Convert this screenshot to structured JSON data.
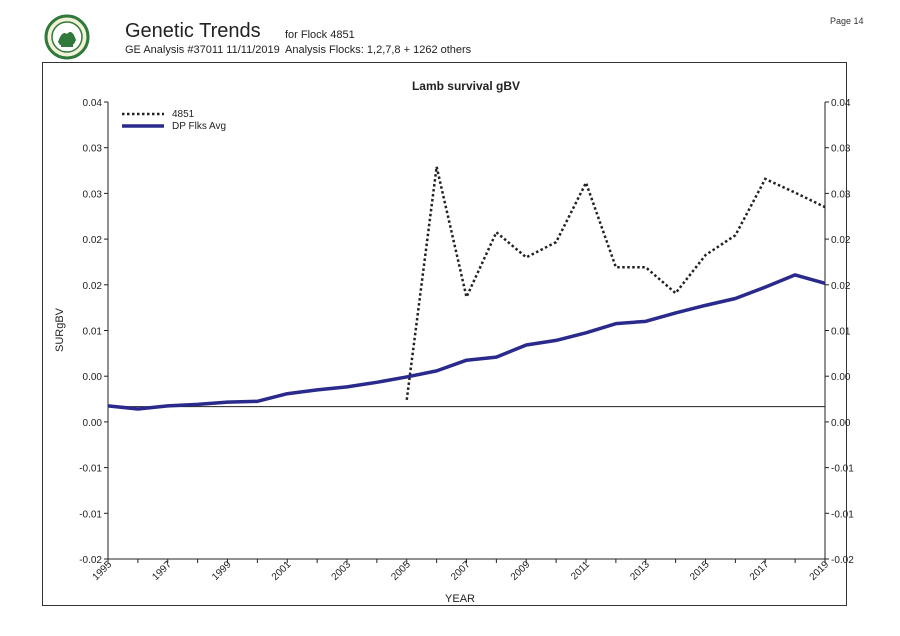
{
  "header": {
    "title": "Genetic Trends",
    "analysis": "GE Analysis #37011 11/11/2019",
    "flock": "for Flock 4851",
    "analysis_flocks": "Analysis Flocks: 1,2,7,8 + 1262 others",
    "page": "Page 14",
    "logo_icon": "sil-logo"
  },
  "chart_data": {
    "type": "line",
    "title": "Lamb survival gBV",
    "xlabel": "YEAR",
    "ylabel": "SURgBV",
    "xlim": [
      1995,
      2019
    ],
    "ylim": [
      -0.02,
      0.04
    ],
    "x_tick_labels": [
      "1995",
      "1997",
      "1999",
      "2001",
      "2003",
      "2005",
      "2007",
      "2009",
      "2011",
      "2013",
      "2015",
      "2017",
      "2019"
    ],
    "y_ticks": [
      0.04,
      0.034,
      0.028,
      0.022,
      0.016,
      0.01,
      0.004,
      -0.002,
      -0.008,
      -0.014,
      -0.02
    ],
    "y_tick_labels": [
      "0.04",
      "0.03",
      "0.03",
      "0.02",
      "0.02",
      "0.01",
      "0.00",
      "0.00",
      "-0.01",
      "-0.01",
      "-0.02"
    ],
    "reference_line": 0,
    "legend_position": "top-left",
    "grid": false,
    "series": [
      {
        "name": "4851",
        "style": "dotted",
        "color": "#222222",
        "x": [
          2005,
          2006,
          2007,
          2008,
          2009,
          2010,
          2011,
          2012,
          2013,
          2014,
          2015,
          2016,
          2017,
          2018,
          2019
        ],
        "values": [
          0.0009,
          0.0315,
          0.0144,
          0.0229,
          0.0196,
          0.0216,
          0.0294,
          0.0183,
          0.0183,
          0.0149,
          0.0199,
          0.0225,
          0.0299,
          0.0281,
          0.0262
        ]
      },
      {
        "name": "DP Flks Avg",
        "style": "solid",
        "color": "#2a2a8c",
        "x": [
          1995,
          1996,
          1997,
          1998,
          1999,
          2000,
          2001,
          2002,
          2003,
          2004,
          2005,
          2006,
          2007,
          2008,
          2009,
          2010,
          2011,
          2012,
          2013,
          2014,
          2015,
          2016,
          2017,
          2018,
          2019
        ],
        "values": [
          0.0001,
          -0.0003,
          0.0001,
          0.0003,
          0.0006,
          0.0007,
          0.0017,
          0.0022,
          0.0026,
          0.0032,
          0.0039,
          0.0047,
          0.0061,
          0.0065,
          0.0081,
          0.0087,
          0.0097,
          0.0109,
          0.0112,
          0.0123,
          0.0133,
          0.0142,
          0.0157,
          0.0173,
          0.0162
        ]
      }
    ]
  }
}
